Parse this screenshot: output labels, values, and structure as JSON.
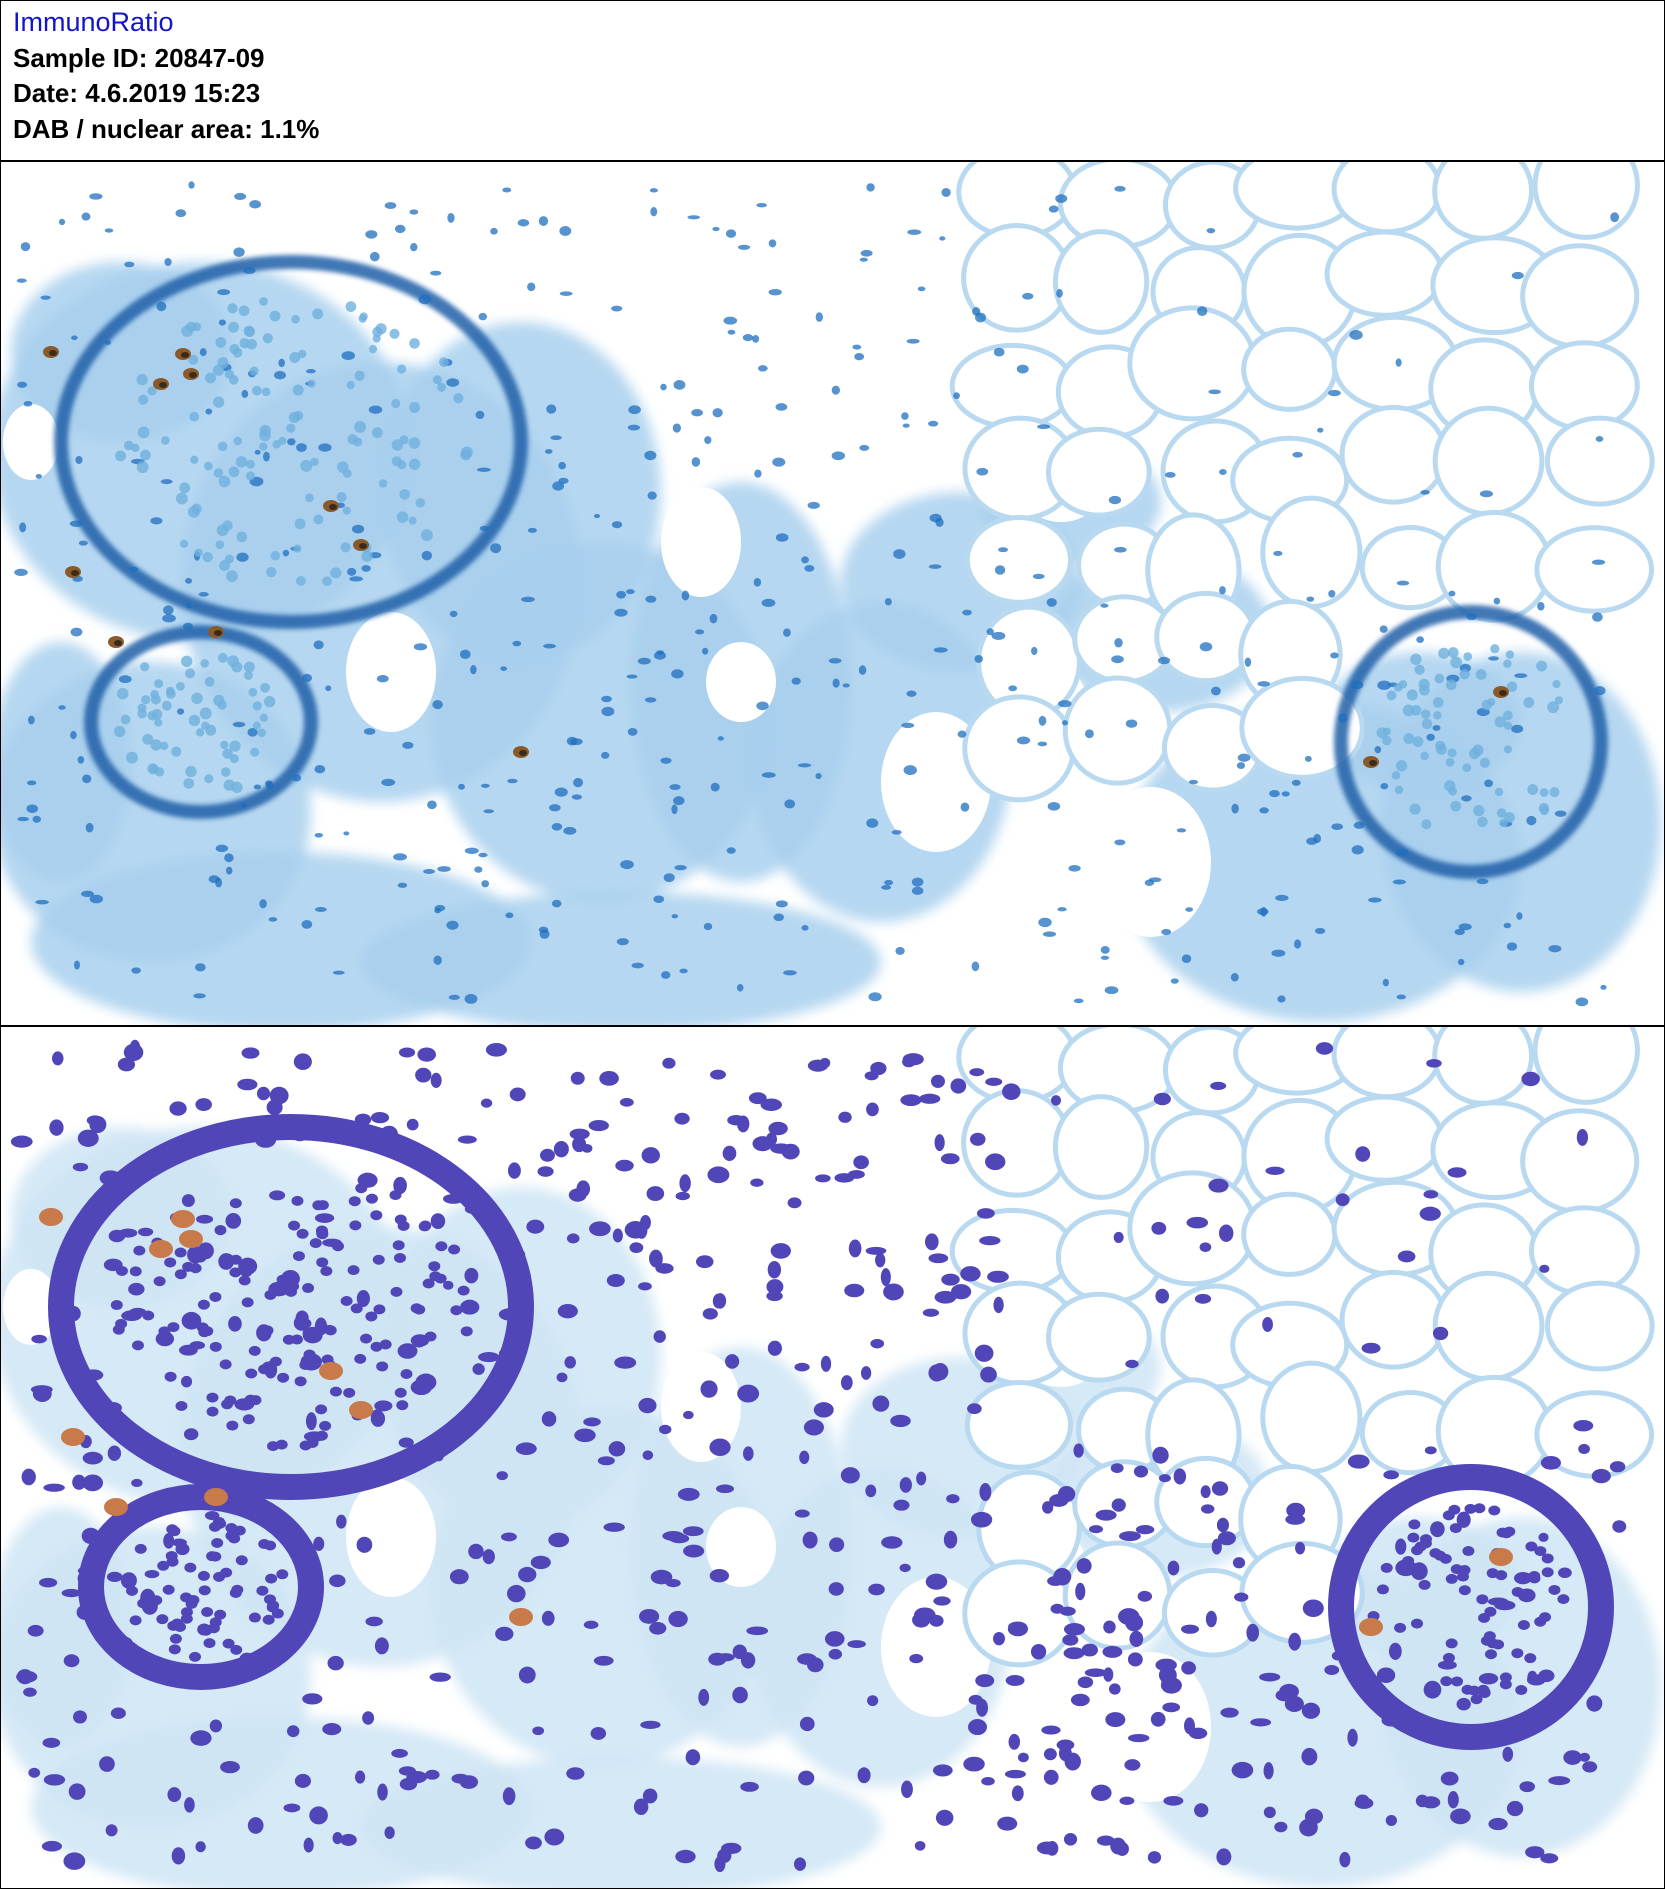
{
  "app": {
    "title": "ImmunoRatio"
  },
  "report": {
    "sample_label": "Sample ID:",
    "sample_id": "20847-09",
    "date_label": "Date:",
    "date": "4.6.2019 15:23",
    "ratio_label": "DAB / nuclear area:",
    "ratio_value": "1.1%"
  },
  "images": {
    "original_name": "tissue-original-image",
    "overlay_name": "tissue-segmentation-overlay"
  },
  "colors": {
    "tissue_light": "#cfe5f5",
    "tissue_mid": "#a9d0ef",
    "hematoxylin_nucleus": "#1f6fbf",
    "membrane_dark": "#1d5fa8",
    "dab_brown": "#8a5a2b",
    "dab_dark": "#3a2a18",
    "segment_blue": "#5146b8",
    "segment_dab": "#c87a4a"
  }
}
